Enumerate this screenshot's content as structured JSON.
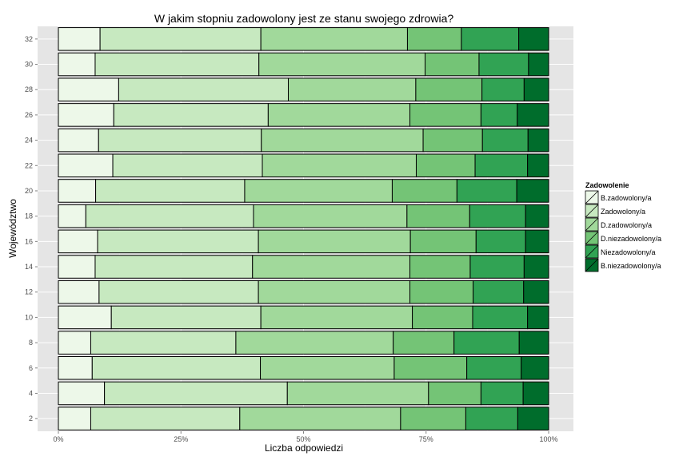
{
  "chart_data": {
    "type": "bar",
    "orientation": "horizontal",
    "stacked": "percent",
    "title": "W jakim stopniu zadowolony jest ze stanu swojego zdrowia?",
    "xlabel": "Liczba odpowiedzi",
    "ylabel": "Województwo",
    "xlim": [
      0,
      100
    ],
    "x_ticks": [
      "0%",
      "25%",
      "50%",
      "75%",
      "100%"
    ],
    "grid": true,
    "legend_position": "right",
    "legend_title": "Zadowolenie",
    "categories": [
      "2",
      "4",
      "6",
      "8",
      "10",
      "12",
      "14",
      "16",
      "18",
      "20",
      "22",
      "24",
      "26",
      "28",
      "30",
      "32"
    ],
    "series": [
      {
        "name": "B.zadowolony/a",
        "color": "#edf8e9",
        "values": [
          6.6,
          9.4,
          6.9,
          6.6,
          10.8,
          8.3,
          7.5,
          8.0,
          5.6,
          7.6,
          11.1,
          8.2,
          11.3,
          12.3,
          7.5,
          8.5
        ]
      },
      {
        "name": "Zadowolony/a",
        "color": "#c7e9c0",
        "values": [
          30.4,
          37.3,
          34.3,
          29.6,
          30.5,
          32.5,
          32.1,
          32.8,
          34.2,
          30.4,
          30.5,
          33.2,
          31.5,
          34.6,
          33.4,
          32.8
        ]
      },
      {
        "name": "D.zadowolony/a",
        "color": "#a1d99b",
        "values": [
          32.8,
          28.8,
          27.3,
          32.1,
          30.9,
          30.9,
          32.1,
          31.0,
          31.3,
          30.1,
          31.4,
          33.0,
          28.9,
          26.0,
          33.9,
          29.9
        ]
      },
      {
        "name": "D.niezadowolony/a",
        "color": "#74c476",
        "values": [
          13.3,
          10.7,
          14.8,
          12.4,
          12.3,
          12.9,
          12.3,
          13.4,
          12.8,
          13.2,
          12.0,
          12.1,
          14.5,
          13.5,
          11.0,
          11.0
        ]
      },
      {
        "name": "Niezadowolony/a",
        "color": "#31a354",
        "values": [
          10.6,
          8.6,
          11.1,
          13.3,
          11.2,
          10.3,
          11.0,
          10.1,
          11.4,
          12.2,
          10.7,
          9.3,
          7.4,
          8.6,
          10.1,
          11.7
        ]
      },
      {
        "name": "B.niezadowolony/a",
        "color": "#006d2c",
        "values": [
          6.3,
          5.2,
          5.6,
          6.0,
          4.3,
          5.1,
          5.0,
          4.7,
          4.7,
          6.5,
          4.3,
          4.2,
          6.4,
          5.0,
          4.1,
          6.1
        ]
      }
    ]
  }
}
